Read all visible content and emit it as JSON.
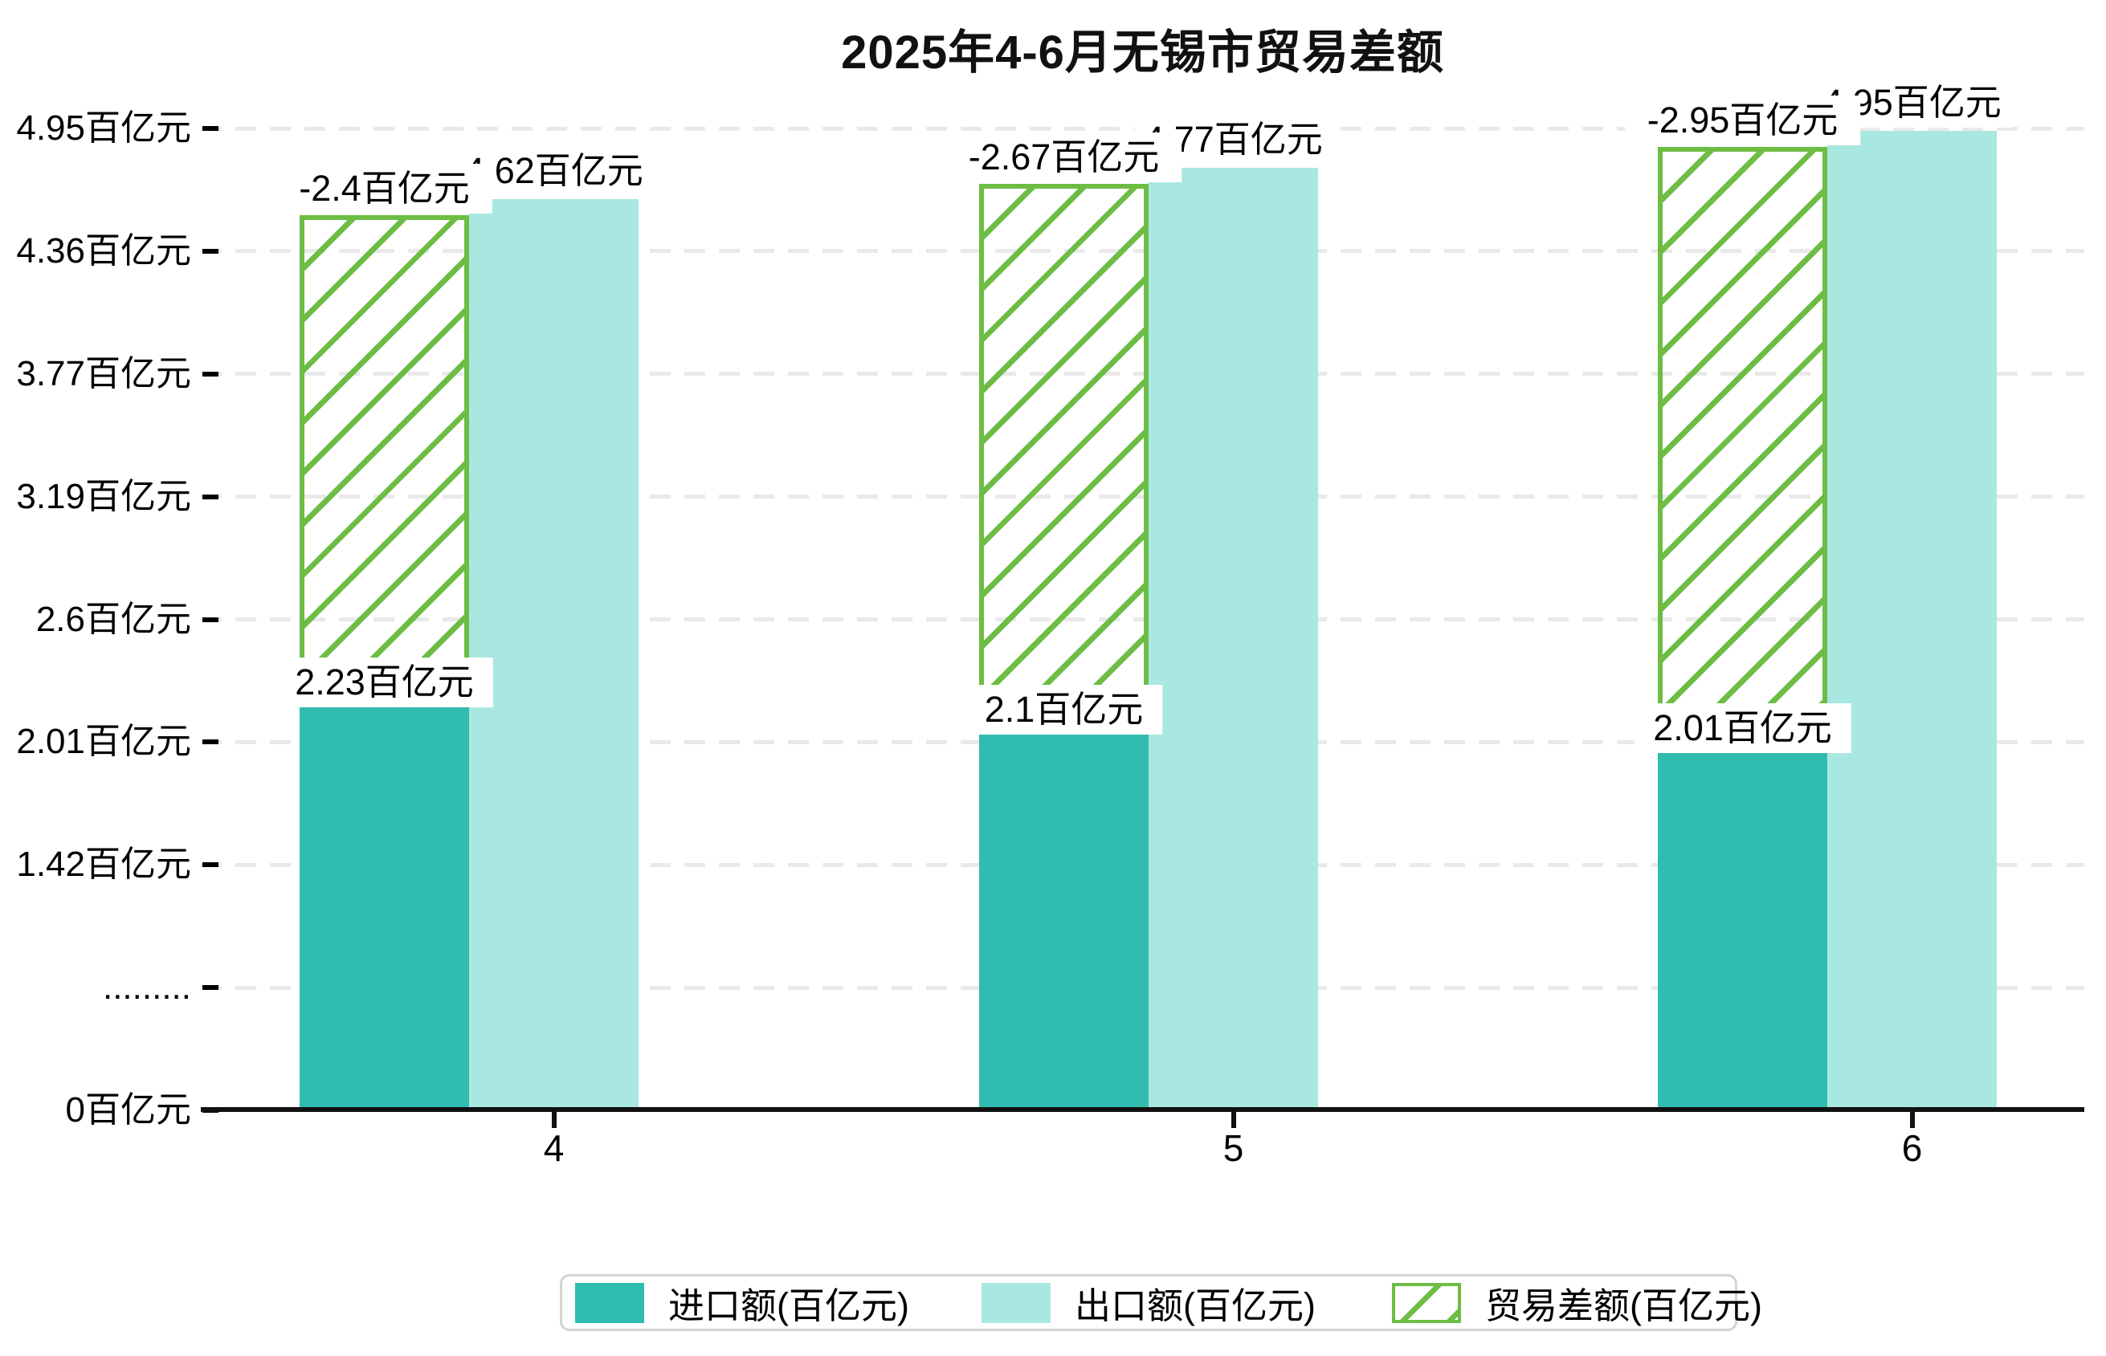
{
  "title": "2025年4-6月无锡市贸易差额",
  "axis": {
    "y_tick_labels_bottom_to_top": [
      "0百亿元",
      ".........",
      "1.42百亿元",
      "2.01百亿元",
      "2.6百亿元",
      "3.19百亿元",
      "3.77百亿元",
      "4.36百亿元",
      "4.95百亿元"
    ],
    "x_tick_labels": [
      "4",
      "5",
      "6"
    ]
  },
  "legend": {
    "items": [
      {
        "label": "进口额(百亿元)",
        "swatch": "solid-import"
      },
      {
        "label": "出口额(百亿元)",
        "swatch": "solid-export"
      },
      {
        "label": "贸易差额(百亿元)",
        "swatch": "green-hatch"
      }
    ]
  },
  "colors": {
    "import_bar": "#31bcb0",
    "export_bar": "#a9e8e0",
    "balance_hatch": "#6dbd45",
    "gridline": "#e9e9e9",
    "axis_line": "#111111",
    "legend_border": "#d4d4d4",
    "label_background": "#ffffff",
    "text": "#000000"
  },
  "chart_data": {
    "type": "bar",
    "title": "2025年4-6月无锡市贸易差额",
    "xlabel": "",
    "ylabel": "",
    "unit": "百亿元",
    "categories": [
      "4",
      "5",
      "6"
    ],
    "series": [
      {
        "name": "进口额(百亿元)",
        "values": [
          2.23,
          2.1,
          2.01
        ],
        "labels": [
          "2.23百亿元",
          "2.1百亿元",
          "2.01百亿元"
        ],
        "style": "solid",
        "color": "#31bcb0"
      },
      {
        "name": "出口额(百亿元)",
        "values": [
          4.62,
          4.77,
          4.95
        ],
        "labels": [
          "4.62百亿元",
          "4.77百亿元",
          "4.95百亿元"
        ],
        "style": "solid",
        "color": "#a9e8e0"
      },
      {
        "name": "贸易差额(百亿元)",
        "values": [
          -2.4,
          -2.67,
          -2.95
        ],
        "labels": [
          "-2.4百亿元",
          "-2.67百亿元",
          "-2.95百亿元"
        ],
        "style": "hatched",
        "color": "#6dbd45",
        "note": "drawn as a hatched band spanning from import top to export top over the import bar slot"
      }
    ],
    "y_axis_tick_labels": [
      "0百亿元",
      ".........",
      "1.42百亿元",
      "2.01百亿元",
      "2.6百亿元",
      "3.19百亿元",
      "3.77百亿元",
      "4.36百亿元",
      "4.95百亿元"
    ],
    "grid": "horizontal-dashed",
    "legend_position": "bottom-center"
  }
}
